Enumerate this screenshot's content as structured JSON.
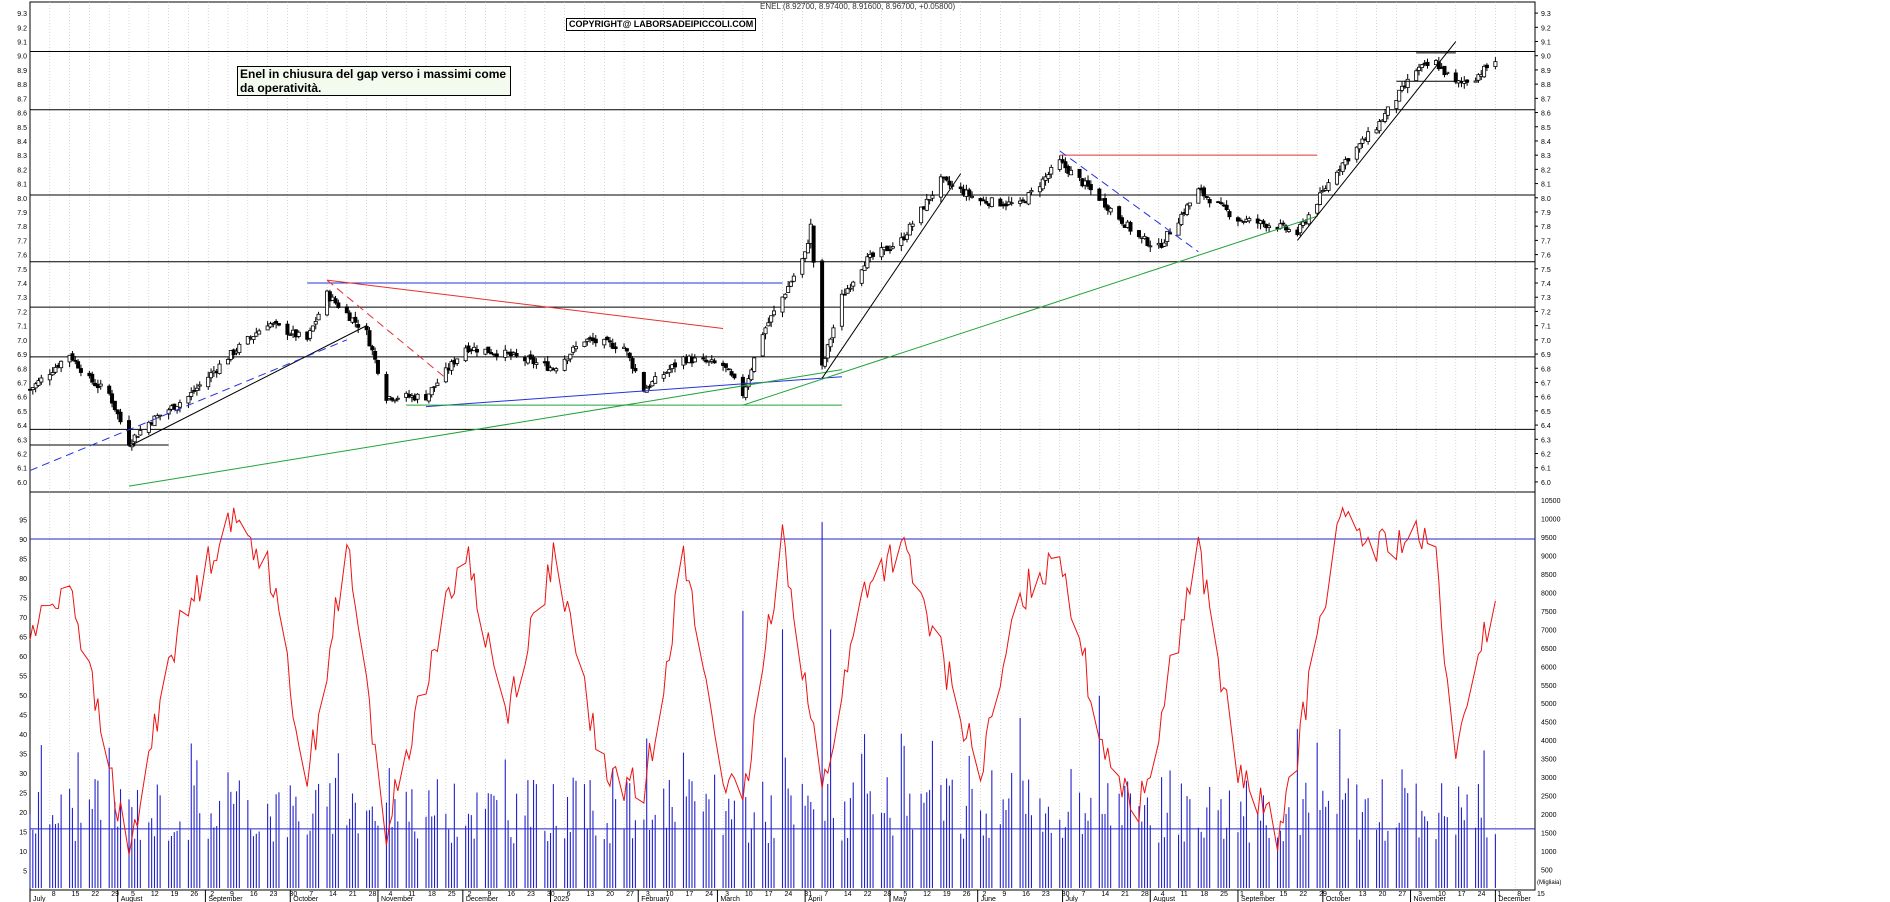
{
  "header": {
    "ohlc_line": "ENEL (8.92700, 8.97400, 8.91600, 8.96700, +0.05800)",
    "copyright": "COPYRIGHT@ LABORSADEIPICCOLI.COM"
  },
  "annotation": {
    "text": "Enel in chiusura del gap verso i massimi come da operatività."
  },
  "colors": {
    "candle": "#000000",
    "grid": "#bdbdbd",
    "trend_red": "#e53030",
    "trend_blue": "#2233dd",
    "trend_green": "#22a33a",
    "oscillator": "#ee1111",
    "volume": "#2222cc",
    "level_line": "#000000"
  },
  "chart_data": [
    {
      "type": "candlestick",
      "title": "",
      "ylim": [
        5.95,
        9.35
      ],
      "y_ticks": [
        "6.0",
        "6.1",
        "6.2",
        "6.3",
        "6.4",
        "6.5",
        "6.6",
        "6.7",
        "6.8",
        "6.9",
        "7.0",
        "7.1",
        "7.2",
        "7.3",
        "7.4",
        "7.5",
        "7.6",
        "7.7",
        "7.8",
        "7.9",
        "8.0",
        "8.1",
        "8.2",
        "8.3",
        "8.4",
        "8.5",
        "8.6",
        "8.7",
        "8.8",
        "8.9",
        "9.0",
        "9.1",
        "9.2",
        "9.3"
      ],
      "horizontal_levels": [
        6.37,
        6.88,
        7.23,
        7.55,
        8.02,
        8.62,
        9.03
      ],
      "trend_lines": [
        {
          "color": "black",
          "style": "solid",
          "from": [
            "Aug 5",
            6.25
          ],
          "to": [
            "Oct 28",
            7.1
          ]
        },
        {
          "color": "black",
          "style": "solid",
          "from": [
            "Jul",
            6.26
          ],
          "to": [
            "Aug 19",
            6.26
          ]
        },
        {
          "color": "blue",
          "style": "dashed",
          "from": [
            "Jul",
            6.08
          ],
          "to": [
            "Oct 21",
            7.0
          ]
        },
        {
          "color": "blue",
          "style": "solid",
          "from": [
            "Oct 7",
            7.4
          ],
          "to": [
            "Mar 24",
            7.4
          ]
        },
        {
          "color": "red",
          "style": "solid",
          "from": [
            "Oct 14",
            7.42
          ],
          "to": [
            "Mar 3",
            7.08
          ]
        },
        {
          "color": "red",
          "style": "dashed",
          "from": [
            "Oct 14",
            7.42
          ],
          "to": [
            "Nov 25",
            6.73
          ]
        },
        {
          "color": "blue",
          "style": "solid",
          "from": [
            "Nov 18",
            6.53
          ],
          "to": [
            "Apr 14",
            6.74
          ]
        },
        {
          "color": "green",
          "style": "solid",
          "from": [
            "Nov 11",
            6.54
          ],
          "to": [
            "Apr 14",
            6.54
          ]
        },
        {
          "color": "green",
          "style": "solid",
          "from": [
            "Aug 5",
            5.97
          ],
          "to": [
            "Apr 14",
            6.79
          ]
        },
        {
          "color": "green",
          "style": "solid",
          "from": [
            "Mar 10",
            6.54
          ],
          "to": [
            "Sep 29",
            7.87
          ]
        },
        {
          "color": "black",
          "style": "solid",
          "from": [
            "Apr 7",
            6.73
          ],
          "to": [
            "May 26",
            8.17
          ]
        },
        {
          "color": "red",
          "style": "solid",
          "from": [
            "Jun 30",
            8.3
          ],
          "to": [
            "Sep 29",
            8.3
          ]
        },
        {
          "color": "blue",
          "style": "dashed",
          "from": [
            "Jun 30",
            8.33
          ],
          "to": [
            "Aug 18",
            7.62
          ]
        },
        {
          "color": "black",
          "style": "solid",
          "from": [
            "Sep 22",
            7.7
          ],
          "to": [
            "Nov 17",
            9.1
          ]
        },
        {
          "color": "black",
          "style": "solid",
          "from": [
            "Nov 3",
            9.02
          ],
          "to": [
            "Nov 17",
            9.02
          ]
        },
        {
          "color": "black",
          "style": "solid",
          "from": [
            "Oct 27",
            8.82
          ],
          "to": [
            "Nov 17",
            8.82
          ]
        }
      ],
      "anchors": [
        {
          "date": "Jul",
          "close": 6.65
        },
        {
          "date": "Jul 15",
          "close": 6.9
        },
        {
          "date": "Jul 22",
          "close": 6.72
        },
        {
          "date": "Jul 29",
          "close": 6.62
        },
        {
          "date": "Aug 5",
          "close": 6.28
        },
        {
          "date": "Aug 12",
          "close": 6.42
        },
        {
          "date": "Aug 26",
          "close": 6.6
        },
        {
          "date": "Sep 9",
          "close": 6.88
        },
        {
          "date": "Sep 23",
          "close": 7.12
        },
        {
          "date": "Oct 7",
          "close": 7.0
        },
        {
          "date": "Oct 14",
          "close": 7.32
        },
        {
          "date": "Oct 28",
          "close": 7.05
        },
        {
          "date": "Nov 4",
          "close": 6.6
        },
        {
          "date": "Nov 18",
          "close": 6.6
        },
        {
          "date": "Dec 2",
          "close": 6.95
        },
        {
          "date": "Dec 16",
          "close": 6.9
        },
        {
          "date": "Jan 2",
          "close": 6.8
        },
        {
          "date": "Jan 13",
          "close": 7.0
        },
        {
          "date": "Jan 27",
          "close": 6.95
        },
        {
          "date": "Feb 3",
          "close": 6.65
        },
        {
          "date": "Feb 17",
          "close": 6.87
        },
        {
          "date": "Mar 3",
          "close": 6.82
        },
        {
          "date": "Mar 10",
          "close": 6.62
        },
        {
          "date": "Mar 17",
          "close": 7.05
        },
        {
          "date": "Mar 24",
          "close": 7.3
        },
        {
          "date": "Apr 1",
          "close": 7.6
        },
        {
          "date": "Apr 3",
          "close": 7.8
        },
        {
          "date": "Apr 7",
          "close": 6.8
        },
        {
          "date": "Apr 14",
          "close": 7.3
        },
        {
          "date": "Apr 22",
          "close": 7.55
        },
        {
          "date": "May 5",
          "close": 7.7
        },
        {
          "date": "May 19",
          "close": 8.12
        },
        {
          "date": "Jun 2",
          "close": 7.98
        },
        {
          "date": "Jun 16",
          "close": 7.95
        },
        {
          "date": "Jun 30",
          "close": 8.25
        },
        {
          "date": "Jul 14",
          "close": 8.0
        },
        {
          "date": "Jul 28",
          "close": 7.72
        },
        {
          "date": "Aug 4",
          "close": 7.65
        },
        {
          "date": "Aug 18",
          "close": 8.05
        },
        {
          "date": "Sep 1",
          "close": 7.85
        },
        {
          "date": "Sep 15",
          "close": 7.8
        },
        {
          "date": "Sep 22",
          "close": 7.75
        },
        {
          "date": "Oct 6",
          "close": 8.2
        },
        {
          "date": "Oct 20",
          "close": 8.5
        },
        {
          "date": "Nov 3",
          "close": 8.9
        },
        {
          "date": "Nov 10",
          "close": 8.95
        },
        {
          "date": "Nov 17",
          "close": 8.8
        },
        {
          "date": "Nov 24",
          "close": 8.85
        },
        {
          "date": "Dec 1",
          "close": 8.967
        }
      ]
    },
    {
      "type": "line",
      "title": "",
      "ylim": [
        0,
        100
      ],
      "y_ticks": [
        "5",
        "10",
        "15",
        "20",
        "25",
        "30",
        "35",
        "40",
        "45",
        "50",
        "55",
        "60",
        "65",
        "70",
        "75",
        "80",
        "85",
        "90",
        "95"
      ],
      "reference_line": 90,
      "anchors": [
        {
          "date": "Jul",
          "value": 65
        },
        {
          "date": "Jul 15",
          "value": 80
        },
        {
          "date": "Jul 22",
          "value": 55
        },
        {
          "date": "Aug 5",
          "value": 8
        },
        {
          "date": "Aug 19",
          "value": 60
        },
        {
          "date": "Sep 9",
          "value": 96
        },
        {
          "date": "Sep 23",
          "value": 85
        },
        {
          "date": "Oct 7",
          "value": 28
        },
        {
          "date": "Oct 21",
          "value": 88
        },
        {
          "date": "Nov 4",
          "value": 15
        },
        {
          "date": "Nov 18",
          "value": 55
        },
        {
          "date": "Dec 2",
          "value": 88
        },
        {
          "date": "Dec 16",
          "value": 45
        },
        {
          "date": "Jan 2",
          "value": 85
        },
        {
          "date": "Jan 20",
          "value": 30
        },
        {
          "date": "Feb 3",
          "value": 25
        },
        {
          "date": "Feb 17",
          "value": 85
        },
        {
          "date": "Mar 3",
          "value": 30
        },
        {
          "date": "Mar 10",
          "value": 20
        },
        {
          "date": "Mar 24",
          "value": 92
        },
        {
          "date": "Apr 7",
          "value": 25
        },
        {
          "date": "Apr 22",
          "value": 78
        },
        {
          "date": "May 5",
          "value": 88
        },
        {
          "date": "May 19",
          "value": 60
        },
        {
          "date": "Jun 2",
          "value": 30
        },
        {
          "date": "Jun 16",
          "value": 75
        },
        {
          "date": "Jun 30",
          "value": 88
        },
        {
          "date": "Jul 14",
          "value": 40
        },
        {
          "date": "Jul 28",
          "value": 20
        },
        {
          "date": "Aug 18",
          "value": 88
        },
        {
          "date": "Sep 1",
          "value": 30
        },
        {
          "date": "Sep 15",
          "value": 15
        },
        {
          "date": "Sep 22",
          "value": 35
        },
        {
          "date": "Oct 6",
          "value": 94
        },
        {
          "date": "Oct 20",
          "value": 88
        },
        {
          "date": "Nov 3",
          "value": 90
        },
        {
          "date": "Nov 10",
          "value": 85
        },
        {
          "date": "Nov 17",
          "value": 30
        },
        {
          "date": "Nov 24",
          "value": 60
        },
        {
          "date": "Dec 1",
          "value": 72
        }
      ]
    },
    {
      "type": "bar",
      "title": "",
      "ylim": [
        0,
        10500
      ],
      "y_ticks": [
        "500",
        "1000",
        "1500",
        "2000",
        "2500",
        "3000",
        "3500",
        "4000",
        "4500",
        "5000",
        "5500",
        "6000",
        "6500",
        "7000",
        "7500",
        "8000",
        "8500",
        "9000",
        "9500",
        "10000",
        "10500"
      ],
      "reference_line": 1600,
      "unit_label": "(Migliaia)",
      "typical_range": [
        1200,
        3000
      ],
      "spikes": [
        {
          "date": "Aug 5",
          "value": 3000
        },
        {
          "date": "Oct 7",
          "value": 4300
        },
        {
          "date": "Mar 10",
          "value": 7500
        },
        {
          "date": "Mar 24",
          "value": 7000
        },
        {
          "date": "Apr 7",
          "value": 9900
        },
        {
          "date": "Apr 10",
          "value": 7000
        },
        {
          "date": "Jun 16",
          "value": 4600
        },
        {
          "date": "Jul 14",
          "value": 5200
        },
        {
          "date": "Sep 22",
          "value": 4300
        }
      ]
    }
  ],
  "x_axis": {
    "month_labels": [
      "July",
      "August",
      "September",
      "October",
      "November",
      "December",
      "2025",
      "February",
      "March",
      "April",
      "May",
      "June",
      "July",
      "August",
      "September",
      "October",
      "November",
      "December"
    ],
    "day_labels": [
      "8",
      "15",
      "22",
      "29",
      "5",
      "12",
      "19",
      "26",
      "2",
      "9",
      "16",
      "23",
      "30",
      "7",
      "14",
      "21",
      "28",
      "4",
      "11",
      "18",
      "25",
      "2",
      "9",
      "16",
      "23",
      "30",
      "6",
      "13",
      "20",
      "27",
      "3",
      "10",
      "17",
      "24",
      "3",
      "10",
      "17",
      "24",
      "31",
      "7",
      "14",
      "22",
      "28",
      "5",
      "12",
      "19",
      "26",
      "2",
      "9",
      "16",
      "23",
      "30",
      "7",
      "14",
      "21",
      "28",
      "4",
      "11",
      "18",
      "25",
      "1",
      "8",
      "15",
      "22",
      "29",
      "6",
      "13",
      "20",
      "27",
      "3",
      "10",
      "17",
      "24",
      "1",
      "8",
      "15"
    ],
    "start": "Jul 1",
    "end": "Dec 15"
  }
}
